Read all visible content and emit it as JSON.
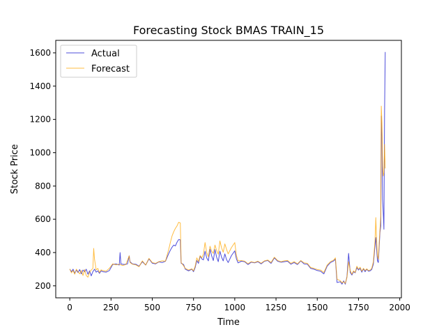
{
  "chart_data": {
    "type": "line",
    "title": "Forecasting Stock BMAS TRAIN_15",
    "xlabel": "Time",
    "ylabel": "Stock Price",
    "xlim": [
      -85,
      2010
    ],
    "ylim": [
      128,
      1675
    ],
    "xticks": [
      0,
      250,
      500,
      750,
      1000,
      1250,
      1500,
      1750,
      2000
    ],
    "yticks": [
      200,
      400,
      600,
      800,
      1000,
      1200,
      1400,
      1600
    ],
    "grid": false,
    "legend_position": "top-left",
    "series": [
      {
        "name": "Actual",
        "color": "#0000cc",
        "points": [
          [
            0,
            300
          ],
          [
            10,
            285
          ],
          [
            20,
            300
          ],
          [
            30,
            275
          ],
          [
            40,
            295
          ],
          [
            50,
            280
          ],
          [
            60,
            298
          ],
          [
            70,
            272
          ],
          [
            80,
            295
          ],
          [
            90,
            285
          ],
          [
            100,
            300
          ],
          [
            110,
            270
          ],
          [
            120,
            290
          ],
          [
            130,
            260
          ],
          [
            140,
            285
          ],
          [
            150,
            300
          ],
          [
            160,
            282
          ],
          [
            170,
            290
          ],
          [
            180,
            275
          ],
          [
            190,
            290
          ],
          [
            200,
            285
          ],
          [
            220,
            282
          ],
          [
            240,
            292
          ],
          [
            260,
            328
          ],
          [
            280,
            332
          ],
          [
            300,
            325
          ],
          [
            305,
            400
          ],
          [
            310,
            332
          ],
          [
            330,
            328
          ],
          [
            350,
            332
          ],
          [
            360,
            380
          ],
          [
            365,
            345
          ],
          [
            380,
            332
          ],
          [
            400,
            330
          ],
          [
            420,
            318
          ],
          [
            440,
            345
          ],
          [
            460,
            325
          ],
          [
            480,
            362
          ],
          [
            500,
            336
          ],
          [
            520,
            332
          ],
          [
            540,
            344
          ],
          [
            560,
            340
          ],
          [
            580,
            348
          ],
          [
            600,
            395
          ],
          [
            610,
            415
          ],
          [
            620,
            432
          ],
          [
            630,
            445
          ],
          [
            640,
            440
          ],
          [
            650,
            462
          ],
          [
            660,
            478
          ],
          [
            670,
            476
          ],
          [
            675,
            336
          ],
          [
            690,
            328
          ],
          [
            700,
            300
          ],
          [
            720,
            290
          ],
          [
            740,
            300
          ],
          [
            750,
            285
          ],
          [
            760,
            310
          ],
          [
            770,
            352
          ],
          [
            780,
            335
          ],
          [
            790,
            378
          ],
          [
            800,
            362
          ],
          [
            810,
            356
          ],
          [
            820,
            408
          ],
          [
            830,
            368
          ],
          [
            840,
            350
          ],
          [
            850,
            420
          ],
          [
            860,
            380
          ],
          [
            870,
            352
          ],
          [
            880,
            418
          ],
          [
            890,
            372
          ],
          [
            900,
            345
          ],
          [
            910,
            408
          ],
          [
            920,
            372
          ],
          [
            930,
            350
          ],
          [
            940,
            392
          ],
          [
            950,
            358
          ],
          [
            960,
            340
          ],
          [
            980,
            382
          ],
          [
            1000,
            410
          ],
          [
            1010,
            362
          ],
          [
            1020,
            338
          ],
          [
            1040,
            348
          ],
          [
            1060,
            345
          ],
          [
            1080,
            328
          ],
          [
            1100,
            342
          ],
          [
            1120,
            338
          ],
          [
            1140,
            345
          ],
          [
            1160,
            332
          ],
          [
            1180,
            348
          ],
          [
            1200,
            352
          ],
          [
            1220,
            335
          ],
          [
            1240,
            368
          ],
          [
            1260,
            348
          ],
          [
            1280,
            342
          ],
          [
            1300,
            345
          ],
          [
            1320,
            348
          ],
          [
            1340,
            330
          ],
          [
            1360,
            340
          ],
          [
            1380,
            328
          ],
          [
            1400,
            350
          ],
          [
            1420,
            332
          ],
          [
            1440,
            330
          ],
          [
            1460,
            305
          ],
          [
            1480,
            300
          ],
          [
            1500,
            292
          ],
          [
            1520,
            288
          ],
          [
            1540,
            272
          ],
          [
            1560,
            318
          ],
          [
            1580,
            340
          ],
          [
            1600,
            350
          ],
          [
            1610,
            360
          ],
          [
            1620,
            220
          ],
          [
            1640,
            225
          ],
          [
            1650,
            210
          ],
          [
            1660,
            230
          ],
          [
            1670,
            210
          ],
          [
            1680,
            255
          ],
          [
            1690,
            395
          ],
          [
            1700,
            280
          ],
          [
            1710,
            265
          ],
          [
            1720,
            285
          ],
          [
            1730,
            278
          ],
          [
            1740,
            310
          ],
          [
            1750,
            295
          ],
          [
            1760,
            305
          ],
          [
            1770,
            282
          ],
          [
            1780,
            302
          ],
          [
            1790,
            285
          ],
          [
            1800,
            300
          ],
          [
            1810,
            288
          ],
          [
            1820,
            290
          ],
          [
            1830,
            298
          ],
          [
            1840,
            330
          ],
          [
            1850,
            440
          ],
          [
            1855,
            490
          ],
          [
            1860,
            420
          ],
          [
            1865,
            350
          ],
          [
            1870,
            340
          ],
          [
            1875,
            430
          ],
          [
            1880,
            520
          ],
          [
            1885,
            560
          ],
          [
            1888,
            1220
          ],
          [
            1892,
            1100
          ],
          [
            1896,
            720
          ],
          [
            1900,
            640
          ],
          [
            1904,
            540
          ],
          [
            1908,
            1250
          ],
          [
            1912,
            1605
          ]
        ]
      },
      {
        "name": "Forecast",
        "color": "#ffa500",
        "points": [
          [
            0,
            302
          ],
          [
            10,
            278
          ],
          [
            20,
            292
          ],
          [
            30,
            270
          ],
          [
            40,
            300
          ],
          [
            50,
            285
          ],
          [
            60,
            272
          ],
          [
            70,
            292
          ],
          [
            80,
            262
          ],
          [
            90,
            298
          ],
          [
            100,
            262
          ],
          [
            110,
            252
          ],
          [
            120,
            282
          ],
          [
            130,
            295
          ],
          [
            140,
            305
          ],
          [
            145,
            425
          ],
          [
            150,
            360
          ],
          [
            160,
            295
          ],
          [
            170,
            305
          ],
          [
            180,
            280
          ],
          [
            190,
            296
          ],
          [
            200,
            292
          ],
          [
            220,
            288
          ],
          [
            240,
            305
          ],
          [
            260,
            332
          ],
          [
            280,
            326
          ],
          [
            300,
            330
          ],
          [
            320,
            322
          ],
          [
            340,
            328
          ],
          [
            360,
            380
          ],
          [
            365,
            340
          ],
          [
            380,
            330
          ],
          [
            400,
            326
          ],
          [
            420,
            315
          ],
          [
            440,
            350
          ],
          [
            460,
            325
          ],
          [
            480,
            365
          ],
          [
            500,
            340
          ],
          [
            520,
            335
          ],
          [
            540,
            345
          ],
          [
            560,
            350
          ],
          [
            580,
            348
          ],
          [
            600,
            420
          ],
          [
            610,
            462
          ],
          [
            620,
            500
          ],
          [
            630,
            525
          ],
          [
            640,
            545
          ],
          [
            650,
            560
          ],
          [
            660,
            582
          ],
          [
            670,
            578
          ],
          [
            675,
            340
          ],
          [
            690,
            320
          ],
          [
            700,
            305
          ],
          [
            720,
            295
          ],
          [
            740,
            302
          ],
          [
            750,
            290
          ],
          [
            760,
            318
          ],
          [
            770,
            368
          ],
          [
            780,
            345
          ],
          [
            790,
            382
          ],
          [
            800,
            368
          ],
          [
            810,
            390
          ],
          [
            820,
            460
          ],
          [
            830,
            400
          ],
          [
            840,
            375
          ],
          [
            850,
            438
          ],
          [
            860,
            408
          ],
          [
            870,
            395
          ],
          [
            880,
            445
          ],
          [
            890,
            412
          ],
          [
            900,
            390
          ],
          [
            910,
            470
          ],
          [
            920,
            428
          ],
          [
            930,
            402
          ],
          [
            940,
            452
          ],
          [
            950,
            420
          ],
          [
            960,
            392
          ],
          [
            980,
            430
          ],
          [
            1000,
            460
          ],
          [
            1010,
            382
          ],
          [
            1020,
            350
          ],
          [
            1040,
            352
          ],
          [
            1060,
            348
          ],
          [
            1080,
            333
          ],
          [
            1100,
            345
          ],
          [
            1120,
            340
          ],
          [
            1140,
            348
          ],
          [
            1160,
            336
          ],
          [
            1180,
            350
          ],
          [
            1200,
            355
          ],
          [
            1220,
            340
          ],
          [
            1240,
            372
          ],
          [
            1260,
            352
          ],
          [
            1280,
            345
          ],
          [
            1300,
            350
          ],
          [
            1320,
            352
          ],
          [
            1340,
            335
          ],
          [
            1360,
            345
          ],
          [
            1380,
            332
          ],
          [
            1400,
            352
          ],
          [
            1420,
            338
          ],
          [
            1440,
            335
          ],
          [
            1460,
            310
          ],
          [
            1480,
            305
          ],
          [
            1500,
            298
          ],
          [
            1520,
            295
          ],
          [
            1540,
            280
          ],
          [
            1560,
            325
          ],
          [
            1580,
            345
          ],
          [
            1600,
            355
          ],
          [
            1610,
            368
          ],
          [
            1620,
            240
          ],
          [
            1640,
            230
          ],
          [
            1650,
            218
          ],
          [
            1660,
            225
          ],
          [
            1670,
            215
          ],
          [
            1680,
            250
          ],
          [
            1690,
            345
          ],
          [
            1700,
            290
          ],
          [
            1710,
            270
          ],
          [
            1720,
            290
          ],
          [
            1730,
            280
          ],
          [
            1740,
            318
          ],
          [
            1750,
            300
          ],
          [
            1760,
            312
          ],
          [
            1770,
            288
          ],
          [
            1780,
            305
          ],
          [
            1790,
            292
          ],
          [
            1800,
            302
          ],
          [
            1810,
            292
          ],
          [
            1820,
            295
          ],
          [
            1830,
            305
          ],
          [
            1840,
            345
          ],
          [
            1850,
            470
          ],
          [
            1855,
            610
          ],
          [
            1860,
            470
          ],
          [
            1865,
            380
          ],
          [
            1870,
            360
          ],
          [
            1875,
            450
          ],
          [
            1880,
            540
          ],
          [
            1885,
            620
          ],
          [
            1888,
            1280
          ],
          [
            1892,
            1180
          ],
          [
            1896,
            920
          ],
          [
            1900,
            860
          ],
          [
            1904,
            880
          ],
          [
            1908,
            1050
          ],
          [
            1912,
            905
          ]
        ]
      }
    ]
  }
}
